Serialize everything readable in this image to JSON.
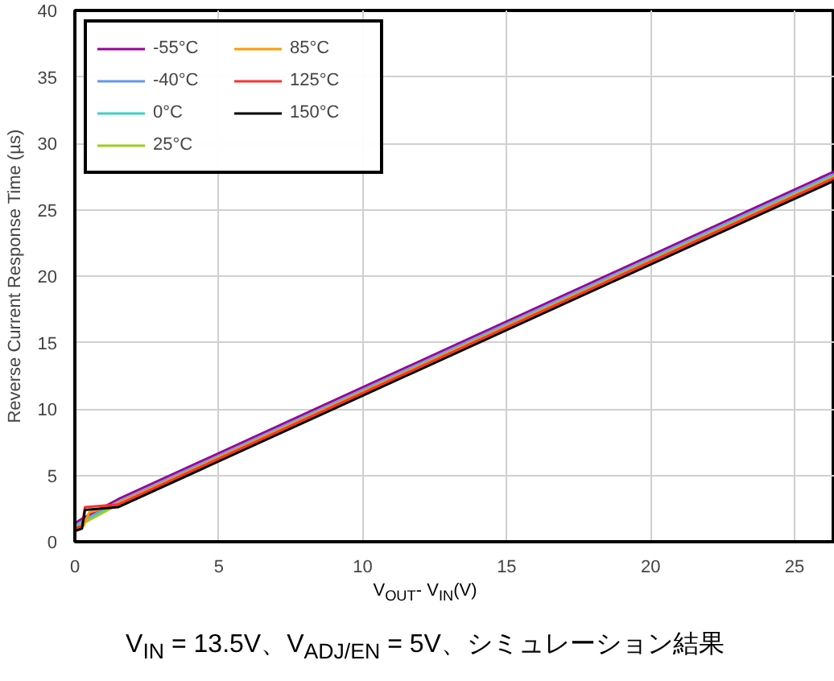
{
  "chart_data": {
    "type": "line",
    "xlabel": "V$_{OUT}$- V$_{IN}$(V)",
    "ylabel": "Reverse Current Response Time (µs)",
    "annotations": [
      "V$_{IN}$ = 13.5V、V$_{ADJ/EN}$ = 5V、シミュレーション結果"
    ],
    "xlim": [
      0,
      26.4
    ],
    "ylim": [
      0,
      40
    ],
    "xticks": [
      0,
      5,
      10,
      15,
      20,
      25
    ],
    "yticks": [
      0,
      5,
      10,
      15,
      20,
      25,
      30,
      35,
      40
    ],
    "grid": true,
    "legend": "top left",
    "line_style": "solid",
    "marker": "none",
    "series": [
      {
        "name": "-55°C",
        "color": "#990099",
        "x": [
          0,
          0.3,
          1.5,
          26.4
        ],
        "values": [
          1.4,
          1.8,
          3.2,
          27.9
        ]
      },
      {
        "name": "-40°C",
        "color": "#6495ed",
        "x": [
          0,
          0.3,
          1.5,
          26.4
        ],
        "values": [
          1.2,
          1.6,
          3.0,
          27.7
        ]
      },
      {
        "name": "0°C",
        "color": "#40d0c8",
        "x": [
          0,
          0.3,
          1.5,
          26.4
        ],
        "values": [
          1.1,
          1.5,
          2.9,
          27.6
        ]
      },
      {
        "name": "25°C",
        "color": "#a0cc20",
        "x": [
          0,
          0.3,
          1.5,
          26.4
        ],
        "values": [
          1.0,
          1.4,
          2.8,
          27.5
        ]
      },
      {
        "name": "85°C",
        "color": "#ff9900",
        "x": [
          0,
          0.3,
          0.5,
          1.5,
          26.4
        ],
        "values": [
          0.9,
          1.2,
          2.2,
          2.9,
          27.5
        ]
      },
      {
        "name": "125°C",
        "color": "#ff3030",
        "x": [
          0,
          0.25,
          0.35,
          1.5,
          26.4
        ],
        "values": [
          1.0,
          1.2,
          2.6,
          2.8,
          27.4
        ]
      },
      {
        "name": "150°C",
        "color": "#000000",
        "x": [
          0,
          0.25,
          0.35,
          1.5,
          26.4
        ],
        "values": [
          0.8,
          1.0,
          2.4,
          2.6,
          27.2
        ]
      }
    ]
  }
}
